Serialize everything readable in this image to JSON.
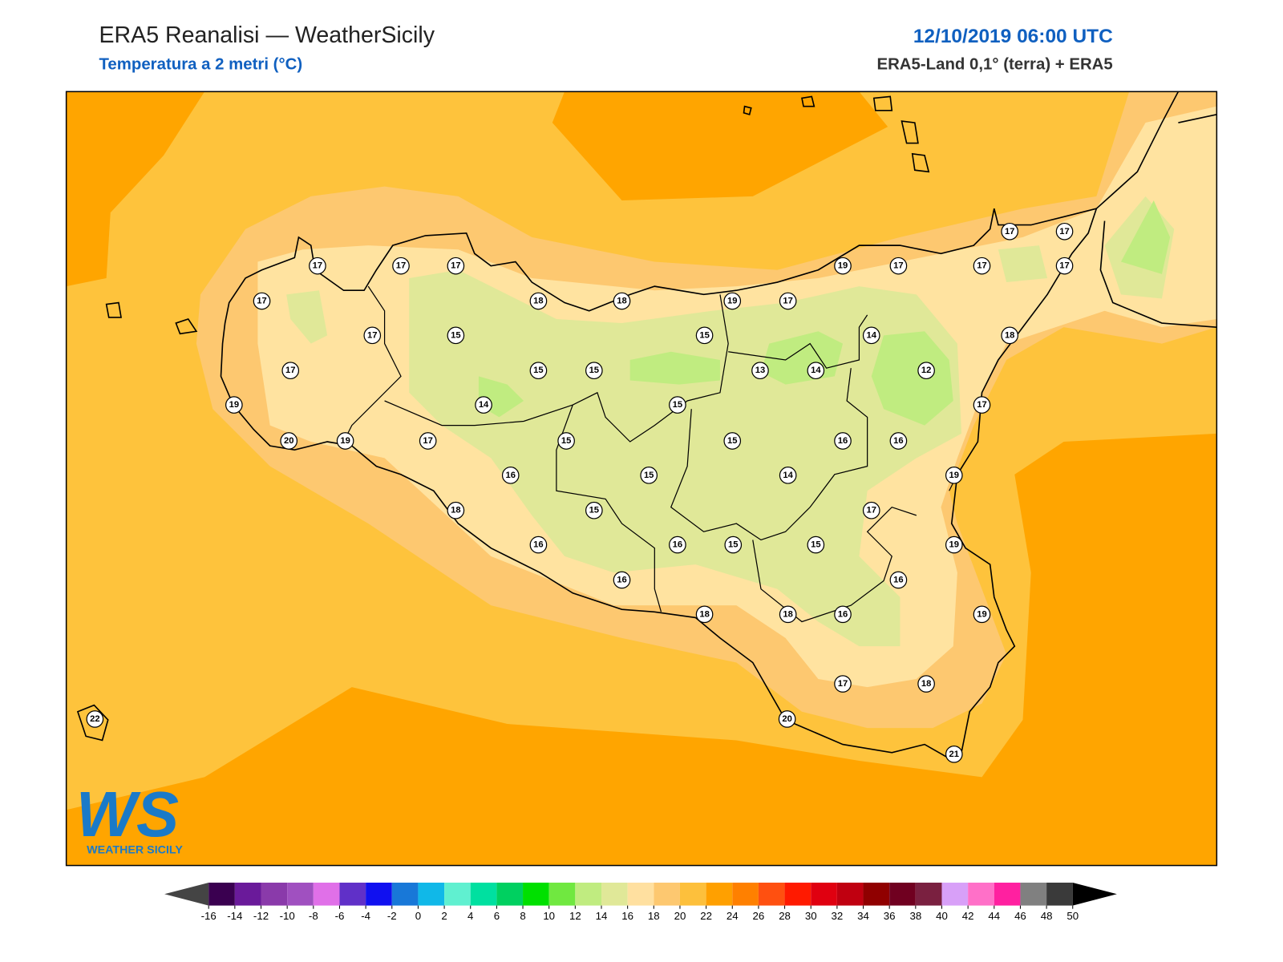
{
  "header": {
    "title": "ERA5 Reanalisi — WeatherSicily",
    "subtitle": "Temperatura a 2 metri (°C)",
    "date": "12/10/2019 06:00 UTC",
    "source": "ERA5-Land 0,1° (terra) + ERA5"
  },
  "logo": {
    "mark": "WS",
    "name": "WEATHER SICILY"
  },
  "stations": {
    "values": [
      17,
      17,
      17,
      17,
      17,
      15,
      17,
      19,
      18,
      18,
      15,
      15,
      14,
      20,
      19,
      17,
      15,
      16,
      15,
      18,
      15,
      16,
      16,
      15,
      16,
      18,
      19,
      17,
      15,
      15,
      13,
      14,
      14,
      12,
      19,
      17,
      17,
      17,
      17,
      17,
      18,
      17,
      15,
      16,
      16,
      14,
      19,
      17,
      15,
      19,
      16,
      19,
      18,
      16,
      17,
      18,
      20,
      21,
      22
    ]
  },
  "colorbar": {
    "ticks": [
      -16,
      -14,
      -12,
      -10,
      -8,
      -6,
      -4,
      -2,
      0,
      2,
      4,
      6,
      8,
      10,
      12,
      14,
      16,
      18,
      20,
      22,
      24,
      26,
      28,
      30,
      32,
      34,
      36,
      38,
      40,
      42,
      44,
      46,
      48,
      50
    ],
    "colors": [
      "#3a0050",
      "#6a1a9a",
      "#8a3aaa",
      "#a050c0",
      "#e070e8",
      "#6030c8",
      "#1010f0",
      "#1878d8",
      "#10b8e8",
      "#60f0d0",
      "#00e0a0",
      "#00d060",
      "#00e000",
      "#70e840",
      "#c0ec80",
      "#e0e898",
      "#ffe0a0",
      "#fdc870",
      "#fdc03c",
      "#ffa000",
      "#ff8000",
      "#ff5010",
      "#ff1a00",
      "#e00010",
      "#c00010",
      "#900000",
      "#700020",
      "#7a2040",
      "#d8a0f8",
      "#ff70c8",
      "#ff20a0",
      "#808080",
      "#3a3a3a"
    ],
    "under_color": "#444444",
    "over_color": "#000000"
  }
}
